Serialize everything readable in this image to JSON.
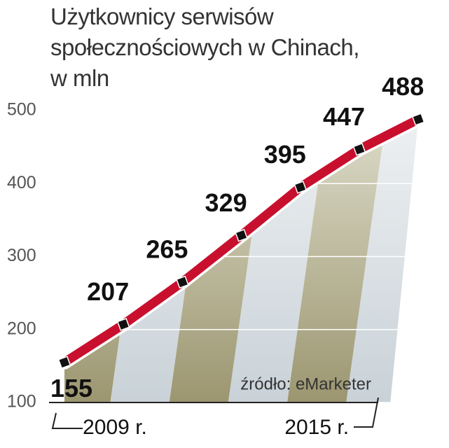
{
  "chart_data": {
    "type": "line",
    "title": "Użytkownicy serwisów\nspołecznościowych w Chinach,\nw mln",
    "categories": [
      "2009 r.",
      null,
      null,
      null,
      null,
      null,
      "2015 r."
    ],
    "values": [
      155,
      207,
      265,
      329,
      395,
      447,
      488
    ],
    "color": "#c8102e",
    "ylim": [
      100,
      500
    ],
    "yticks": [
      100,
      200,
      300,
      400,
      500
    ],
    "source": "źródło: eMarketer"
  }
}
